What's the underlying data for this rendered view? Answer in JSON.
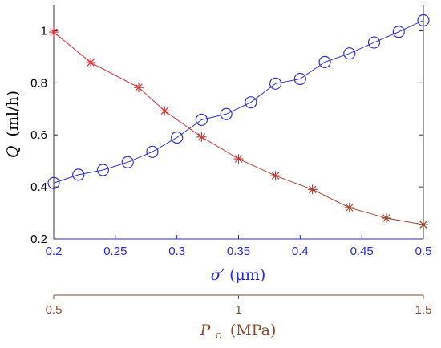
{
  "chart_data": {
    "type": "line",
    "ylabel": "Q (ml/h)",
    "ylabel_var": "Q",
    "ylabel_unit": "(ml/h)",
    "xlabel": "σ′(μm)",
    "xlabel_var": "σ′",
    "xlabel_unit": "(μm)",
    "secondary_xlabel": "Pc (MPa)",
    "secondary_xlabel_var": "P",
    "secondary_xlabel_sub": "c",
    "secondary_xlabel_unit": "(MPa)",
    "xlim": [
      0.2,
      0.5
    ],
    "ylim": [
      0.2,
      1.1
    ],
    "secondary_xlim": [
      0.5,
      1.5
    ],
    "x_ticks": [
      "0.2",
      "0.25",
      "0.3",
      "0.35",
      "0.4",
      "0.45",
      "0.5"
    ],
    "x_tick_values": [
      0.2,
      0.25,
      0.3,
      0.35,
      0.4,
      0.45,
      0.5
    ],
    "y_ticks": [
      "0.2",
      "0.4",
      "0.6",
      "0.8",
      "1"
    ],
    "y_tick_values": [
      0.2,
      0.4,
      0.6,
      0.8,
      1.0
    ],
    "secondary_x_ticks": [
      "0.5",
      "1",
      "1.5"
    ],
    "secondary_x_tick_values": [
      0.5,
      1.0,
      1.5
    ],
    "grid": false,
    "series": [
      {
        "axis": "primary",
        "marker": "circle",
        "color": "#3434c8",
        "x": [
          0.2,
          0.22,
          0.24,
          0.26,
          0.28,
          0.3,
          0.32,
          0.34,
          0.36,
          0.38,
          0.4,
          0.42,
          0.44,
          0.46,
          0.48,
          0.5
        ],
        "y": [
          0.415,
          0.447,
          0.465,
          0.495,
          0.535,
          0.59,
          0.658,
          0.68,
          0.725,
          0.797,
          0.815,
          0.88,
          0.913,
          0.955,
          0.996,
          1.04
        ]
      },
      {
        "axis": "secondary",
        "marker": "asterisk",
        "color_start": "#e8323c",
        "color_end": "#8b4a2c",
        "x": [
          0.5,
          0.6,
          0.73,
          0.8,
          0.9,
          1.0,
          1.1,
          1.2,
          1.3,
          1.4,
          1.5
        ],
        "y": [
          0.995,
          0.878,
          0.782,
          0.692,
          0.592,
          0.508,
          0.443,
          0.39,
          0.32,
          0.28,
          0.255
        ]
      }
    ],
    "colors": {
      "primary_axis": "#2a2ad0",
      "secondary_axis": "#8b4a2c",
      "frame": "#333333",
      "text": "#000000"
    }
  }
}
